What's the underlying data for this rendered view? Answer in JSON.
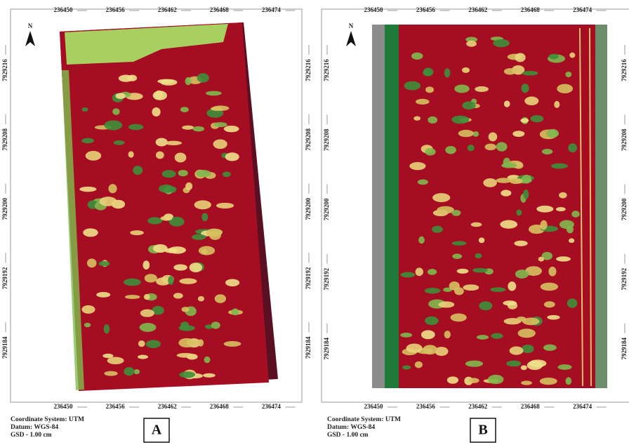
{
  "panels": [
    {
      "label": "A",
      "north": "N",
      "xticks": [
        236450,
        236456,
        236462,
        236468,
        236474
      ],
      "yticks": [
        7929216,
        7929208,
        7929200,
        7929192,
        7929184
      ],
      "info": [
        "Coordinate System: UTM",
        "Datum: WGS-84",
        "GSD - 1.00 cm"
      ]
    },
    {
      "label": "B",
      "north": "N",
      "xticks": [
        236450,
        236456,
        236462,
        236468,
        236474
      ],
      "yticks": [
        7929216,
        7929208,
        7929200,
        7929192,
        7929184
      ],
      "info": [
        "Coordinate System: UTM",
        "Datum: WGS-84",
        "GSD - 1.00 cm"
      ]
    }
  ]
}
